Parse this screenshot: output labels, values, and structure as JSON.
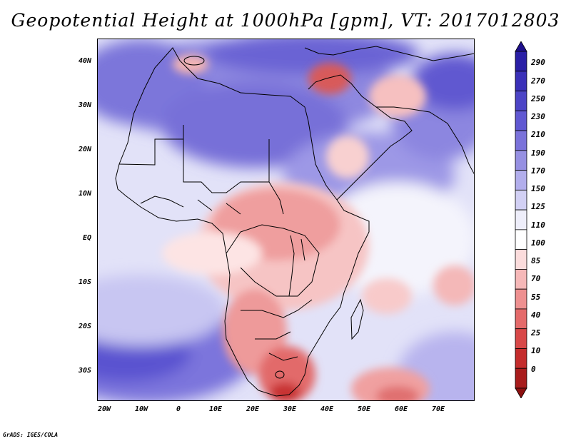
{
  "title": "Geopotential Height at 1000hPa [gpm], VT: 2017012803",
  "credit": "GrADS: IGES/COLA",
  "lat_labels": [
    "40N",
    "30N",
    "20N",
    "10N",
    "EQ",
    "10S",
    "20S",
    "30S"
  ],
  "lon_labels": [
    "20W",
    "10W",
    "0",
    "10E",
    "20E",
    "30E",
    "40E",
    "50E",
    "60E",
    "70E"
  ],
  "colorbar": {
    "levels": [
      "290",
      "270",
      "250",
      "230",
      "210",
      "190",
      "170",
      "150",
      "125",
      "110",
      "100",
      "85",
      "70",
      "55",
      "40",
      "25",
      "10",
      "0"
    ],
    "colors": [
      "#1e0f8c",
      "#2a1fa6",
      "#3a30b8",
      "#4c44c6",
      "#6058d2",
      "#7a72da",
      "#9690e2",
      "#b2aeec",
      "#d2d0f4",
      "#eeeefa",
      "#ffffff",
      "#fbdcdc",
      "#f6b8b8",
      "#ee9090",
      "#e46a6a",
      "#d84848",
      "#c42c2c",
      "#a81c1c",
      "#8c1010"
    ]
  }
}
